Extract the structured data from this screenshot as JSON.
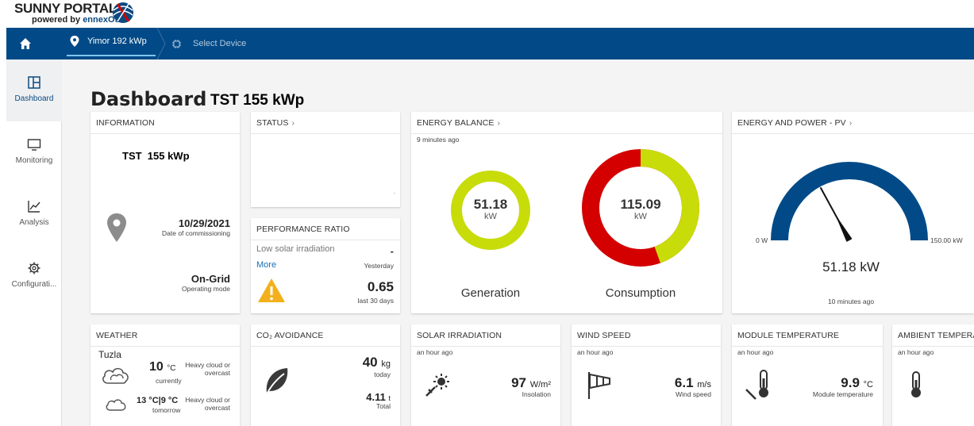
{
  "header": {
    "brand_title": "SUNNY PORTAL",
    "brand_sub_prefix": "powered by ",
    "brand_sub_name": "ennexOS"
  },
  "nav": {
    "plant": "Yimor 192 kWp",
    "device": "Select Device"
  },
  "sidebar": {
    "items": [
      {
        "label": "Dashboard"
      },
      {
        "label": "Monitoring"
      },
      {
        "label": "Analysis"
      },
      {
        "label": "Configurati..."
      }
    ]
  },
  "page": {
    "title": "Dashboard",
    "subtitle": "TST  155 kWp"
  },
  "information": {
    "title": "INFORMATION",
    "plant_name": "TST  155 kWp",
    "commission_date": "10/29/2021",
    "commission_label": "Date of commissioning",
    "mode": "On-Grid",
    "mode_label": "Operating mode"
  },
  "status": {
    "title": "STATUS",
    "mark": "."
  },
  "performance": {
    "title": "PERFORMANCE RATIO",
    "message": "Low solar irradiation",
    "more": "More",
    "yesterday_value": "-",
    "yesterday_label": "Yesterday",
    "ratio_value": "0.65",
    "ratio_label": "last 30 days"
  },
  "energy_balance": {
    "title": "ENERGY BALANCE",
    "ago": "9 minutes ago",
    "generation_value": "51.18",
    "generation_unit": "kW",
    "generation_label": "Generation",
    "generation_fraction": 1.0,
    "consumption_value": "115.09",
    "consumption_unit": "kW",
    "consumption_label": "Consumption",
    "consumption_pv_fraction": 0.445,
    "colors": {
      "pv": "#c8dc0a",
      "grid": "#d40000"
    }
  },
  "energy_power": {
    "title": "ENERGY AND POWER - PV",
    "min_label": "0 W",
    "max_label": "150.00 kW",
    "value": "51.18 kW",
    "gauge_fraction": 0.341,
    "ago": "10 minutes ago",
    "gauge_color": "#014a87"
  },
  "weather": {
    "title": "WEATHER",
    "location": "Tuzla",
    "current_temp": "10",
    "current_unit": "°C",
    "current_label": "currently",
    "current_desc_1": "Heavy cloud or",
    "current_desc_2": "overcast",
    "tomorrow_temp": "13 °C|9 °C",
    "tomorrow_label": "tomorrow",
    "tomorrow_desc_1": "Heavy cloud or",
    "tomorrow_desc_2": "overcast"
  },
  "co2": {
    "title": "CO₂ AVOIDANCE",
    "today_value": "40",
    "today_unit": "kg",
    "today_label": "today",
    "total_value": "4.11",
    "total_unit": "t",
    "total_label": "Total"
  },
  "solar": {
    "title": "SOLAR IRRADIATION",
    "ago": "an hour ago",
    "value": "97",
    "unit": "W/m²",
    "label": "Insolation"
  },
  "wind": {
    "title": "WIND SPEED",
    "ago": "an hour ago",
    "value": "6.1",
    "unit": "m/s",
    "label": "Wind speed"
  },
  "module_temp": {
    "title": "MODULE TEMPERATURE",
    "ago": "an hour ago",
    "value": "9.9",
    "unit": "°C",
    "label": "Module temperature"
  },
  "ambient_temp": {
    "title": "AMBIENT TEMPERAT",
    "ago": "an hour ago"
  }
}
